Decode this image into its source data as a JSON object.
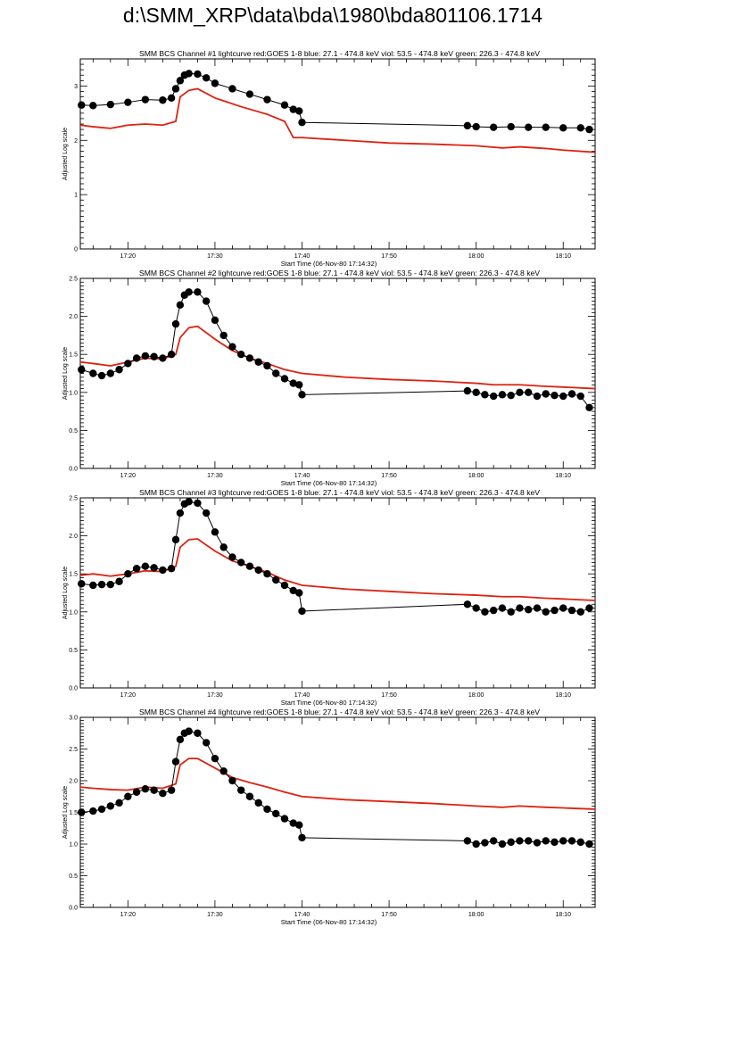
{
  "page_title": "d:\\SMM_XRP\\data\\bda\\1980\\bda801106.1714",
  "colors": {
    "goes": "#dd2211",
    "bcs": "#000000",
    "axes": "#000000"
  },
  "chart_data": [
    {
      "type": "line",
      "title": "SMM BCS Channel #1 lightcurve  red:GOES 1-8  blue: 27.1 - 474.8 keV  viol: 53.5 - 474.8 keV  green: 226.3 - 474.8 keV",
      "xlabel": "Start Time (06-Nov-80 17:14:32)",
      "ylabel": "Adjusted Log scale",
      "xlim": [
        "17:14:32",
        "18:13:40"
      ],
      "ylim": [
        0,
        3.5
      ],
      "x_ticks": [
        "17:20",
        "17:30",
        "17:40",
        "17:50",
        "18:00",
        "18:10"
      ],
      "y_ticks": [
        "0",
        "1",
        "2",
        "3"
      ],
      "series": [
        {
          "style": "goes",
          "x": [
            "17:14:32",
            "17:16:00",
            "17:18:00",
            "17:20:00",
            "17:22:00",
            "17:24:00",
            "17:25:30",
            "17:26:00",
            "17:27:00",
            "17:28:00",
            "17:30:00",
            "17:33:00",
            "17:36:00",
            "17:38:00",
            "17:39:00",
            "17:40:00",
            "17:45:00",
            "17:50:00",
            "17:55:00",
            "18:00:00",
            "18:03:00",
            "18:05:00",
            "18:08:00",
            "18:10:00",
            "18:13:40"
          ],
          "y": [
            2.28,
            2.25,
            2.22,
            2.28,
            2.3,
            2.28,
            2.35,
            2.8,
            2.92,
            2.95,
            2.78,
            2.62,
            2.48,
            2.35,
            2.05,
            2.05,
            2.0,
            1.95,
            1.93,
            1.9,
            1.86,
            1.88,
            1.85,
            1.82,
            1.78
          ]
        },
        {
          "style": "bcs",
          "x": [
            "17:14:40",
            "17:16:00",
            "17:18:00",
            "17:20:00",
            "17:22:00",
            "17:24:00",
            "17:25:00",
            "17:25:30",
            "17:26:00",
            "17:26:30",
            "17:27:00",
            "17:28:00",
            "17:29:00",
            "17:30:00",
            "17:32:00",
            "17:34:00",
            "17:36:00",
            "17:38:00",
            "17:39:00",
            "17:39:40",
            "17:40:00",
            "17:59:00",
            "18:00:00",
            "18:02:00",
            "18:04:00",
            "18:06:00",
            "18:08:00",
            "18:10:00",
            "18:12:00",
            "18:13:00"
          ],
          "y": [
            2.65,
            2.64,
            2.66,
            2.7,
            2.75,
            2.74,
            2.78,
            2.95,
            3.1,
            3.2,
            3.23,
            3.22,
            3.15,
            3.05,
            2.95,
            2.85,
            2.75,
            2.65,
            2.57,
            2.54,
            2.33,
            2.27,
            2.25,
            2.24,
            2.25,
            2.24,
            2.24,
            2.23,
            2.23,
            2.2
          ]
        }
      ],
      "gap": [
        "17:40:00",
        "17:59:00"
      ]
    },
    {
      "type": "line",
      "title": "SMM BCS Channel #2 lightcurve  red:GOES 1-8  blue: 27.1 - 474.8 keV  viol: 53.5 - 474.8 keV  green: 226.3 - 474.8 keV",
      "xlabel": "Start Time (06-Nov-80 17:14:32)",
      "ylabel": "Adjusted Log scale",
      "xlim": [
        "17:14:32",
        "18:13:40"
      ],
      "ylim": [
        0,
        2.5
      ],
      "x_ticks": [
        "17:20",
        "17:30",
        "17:40",
        "17:50",
        "18:00",
        "18:10"
      ],
      "y_ticks": [
        "0.0",
        "0.5",
        "1.0",
        "1.5",
        "2.0",
        "2.5"
      ],
      "series": [
        {
          "style": "goes",
          "x": [
            "17:14:32",
            "17:16:00",
            "17:18:00",
            "17:20:00",
            "17:22:00",
            "17:24:00",
            "17:25:30",
            "17:26:00",
            "17:27:00",
            "17:28:00",
            "17:30:00",
            "17:32:00",
            "17:34:00",
            "17:36:00",
            "17:38:00",
            "17:40:00",
            "17:45:00",
            "17:50:00",
            "17:55:00",
            "18:00:00",
            "18:02:00",
            "18:05:00",
            "18:08:00",
            "18:10:00",
            "18:13:40"
          ],
          "y": [
            1.4,
            1.38,
            1.35,
            1.4,
            1.45,
            1.44,
            1.5,
            1.72,
            1.85,
            1.87,
            1.7,
            1.55,
            1.45,
            1.38,
            1.3,
            1.25,
            1.2,
            1.17,
            1.15,
            1.12,
            1.1,
            1.1,
            1.08,
            1.07,
            1.05
          ]
        },
        {
          "style": "bcs",
          "x": [
            "17:14:40",
            "17:16:00",
            "17:17:00",
            "17:18:00",
            "17:19:00",
            "17:20:00",
            "17:21:00",
            "17:22:00",
            "17:23:00",
            "17:24:00",
            "17:25:00",
            "17:25:30",
            "17:26:00",
            "17:26:30",
            "17:27:00",
            "17:28:00",
            "17:29:00",
            "17:30:00",
            "17:31:00",
            "17:32:00",
            "17:33:00",
            "17:34:00",
            "17:35:00",
            "17:36:00",
            "17:37:00",
            "17:38:00",
            "17:39:00",
            "17:39:40",
            "17:40:00",
            "17:59:00",
            "18:00:00",
            "18:01:00",
            "18:02:00",
            "18:03:00",
            "18:04:00",
            "18:05:00",
            "18:06:00",
            "18:07:00",
            "18:08:00",
            "18:09:00",
            "18:10:00",
            "18:11:00",
            "18:12:00",
            "18:13:00"
          ],
          "y": [
            1.3,
            1.25,
            1.22,
            1.25,
            1.3,
            1.38,
            1.45,
            1.48,
            1.47,
            1.45,
            1.5,
            1.9,
            2.15,
            2.28,
            2.32,
            2.32,
            2.2,
            1.95,
            1.75,
            1.6,
            1.5,
            1.45,
            1.4,
            1.35,
            1.25,
            1.18,
            1.12,
            1.1,
            0.97,
            1.02,
            1.0,
            0.97,
            0.95,
            0.97,
            0.96,
            1.0,
            1.0,
            0.95,
            0.98,
            0.96,
            0.95,
            0.98,
            0.95,
            0.8
          ]
        }
      ],
      "gap": [
        "17:40:00",
        "17:59:00"
      ]
    },
    {
      "type": "line",
      "title": "SMM BCS Channel #3 lightcurve  red:GOES 1-8  blue: 27.1 - 474.8 keV  viol: 53.5 - 474.8 keV  green: 226.3 - 474.8 keV",
      "xlabel": "Start Time (06-Nov-80 17:14:32)",
      "ylabel": "Adjusted Log scale",
      "xlim": [
        "17:14:32",
        "18:13:40"
      ],
      "ylim": [
        0,
        2.5
      ],
      "x_ticks": [
        "17:20",
        "17:30",
        "17:40",
        "17:50",
        "18:00",
        "18:10"
      ],
      "y_ticks": [
        "0.0",
        "0.5",
        "1.0",
        "1.5",
        "2.0",
        "2.5"
      ],
      "series": [
        {
          "style": "goes",
          "x": [
            "17:14:32",
            "17:16:00",
            "17:18:00",
            "17:20:00",
            "17:22:00",
            "17:24:00",
            "17:25:30",
            "17:26:00",
            "17:27:00",
            "17:28:00",
            "17:30:00",
            "17:32:00",
            "17:34:00",
            "17:36:00",
            "17:38:00",
            "17:40:00",
            "17:45:00",
            "17:50:00",
            "17:55:00",
            "18:00:00",
            "18:03:00",
            "18:05:00",
            "18:08:00",
            "18:10:00",
            "18:13:40"
          ],
          "y": [
            1.48,
            1.5,
            1.47,
            1.5,
            1.54,
            1.53,
            1.6,
            1.85,
            1.95,
            1.96,
            1.8,
            1.67,
            1.6,
            1.52,
            1.42,
            1.35,
            1.3,
            1.27,
            1.24,
            1.22,
            1.2,
            1.2,
            1.18,
            1.17,
            1.15
          ]
        },
        {
          "style": "bcs",
          "x": [
            "17:14:40",
            "17:16:00",
            "17:17:00",
            "17:18:00",
            "17:19:00",
            "17:20:00",
            "17:21:00",
            "17:22:00",
            "17:23:00",
            "17:24:00",
            "17:25:00",
            "17:25:30",
            "17:26:00",
            "17:26:30",
            "17:27:00",
            "17:28:00",
            "17:29:00",
            "17:30:00",
            "17:31:00",
            "17:32:00",
            "17:33:00",
            "17:34:00",
            "17:35:00",
            "17:36:00",
            "17:37:00",
            "17:38:00",
            "17:39:00",
            "17:39:40",
            "17:40:00",
            "17:59:00",
            "18:00:00",
            "18:01:00",
            "18:02:00",
            "18:03:00",
            "18:04:00",
            "18:05:00",
            "18:06:00",
            "18:07:00",
            "18:08:00",
            "18:09:00",
            "18:10:00",
            "18:11:00",
            "18:12:00",
            "18:13:00"
          ],
          "y": [
            1.37,
            1.35,
            1.36,
            1.36,
            1.4,
            1.5,
            1.57,
            1.6,
            1.58,
            1.55,
            1.57,
            1.95,
            2.3,
            2.42,
            2.45,
            2.43,
            2.3,
            2.05,
            1.85,
            1.72,
            1.65,
            1.6,
            1.55,
            1.5,
            1.42,
            1.35,
            1.28,
            1.25,
            1.01,
            1.1,
            1.05,
            1.0,
            1.02,
            1.05,
            1.0,
            1.05,
            1.03,
            1.05,
            1.0,
            1.02,
            1.05,
            1.02,
            1.0,
            1.05
          ]
        }
      ],
      "gap": [
        "17:40:00",
        "17:59:00"
      ]
    },
    {
      "type": "line",
      "title": "SMM BCS Channel #4 lightcurve  red:GOES 1-8  blue: 27.1 - 474.8 keV  viol: 53.5 - 474.8 keV  green: 226.3 - 474.8 keV",
      "xlabel": "Start Time (06-Nov-80 17:14:32)",
      "ylabel": "Adjusted Log scale",
      "xlim": [
        "17:14:32",
        "18:13:40"
      ],
      "ylim": [
        0,
        3.0
      ],
      "x_ticks": [
        "17:20",
        "17:30",
        "17:40",
        "17:50",
        "18:00",
        "18:10"
      ],
      "y_ticks": [
        "0.0",
        "0.5",
        "1.0",
        "1.5",
        "2.0",
        "2.5",
        "3.0"
      ],
      "series": [
        {
          "style": "goes",
          "x": [
            "17:14:32",
            "17:16:00",
            "17:18:00",
            "17:20:00",
            "17:22:00",
            "17:24:00",
            "17:25:30",
            "17:26:00",
            "17:27:00",
            "17:28:00",
            "17:30:00",
            "17:32:00",
            "17:34:00",
            "17:36:00",
            "17:38:00",
            "17:40:00",
            "17:45:00",
            "17:50:00",
            "17:55:00",
            "18:00:00",
            "18:03:00",
            "18:05:00",
            "18:08:00",
            "18:10:00",
            "18:13:40"
          ],
          "y": [
            1.9,
            1.88,
            1.86,
            1.85,
            1.9,
            1.88,
            1.95,
            2.25,
            2.35,
            2.35,
            2.2,
            2.05,
            1.97,
            1.9,
            1.82,
            1.75,
            1.7,
            1.67,
            1.64,
            1.6,
            1.58,
            1.6,
            1.58,
            1.57,
            1.55
          ]
        },
        {
          "style": "bcs",
          "x": [
            "17:14:40",
            "17:16:00",
            "17:17:00",
            "17:18:00",
            "17:19:00",
            "17:20:00",
            "17:21:00",
            "17:22:00",
            "17:23:00",
            "17:24:00",
            "17:25:00",
            "17:25:30",
            "17:26:00",
            "17:26:30",
            "17:27:00",
            "17:28:00",
            "17:29:00",
            "17:30:00",
            "17:31:00",
            "17:32:00",
            "17:33:00",
            "17:34:00",
            "17:35:00",
            "17:36:00",
            "17:37:00",
            "17:38:00",
            "17:39:00",
            "17:39:40",
            "17:40:00",
            "17:59:00",
            "18:00:00",
            "18:01:00",
            "18:02:00",
            "18:03:00",
            "18:04:00",
            "18:05:00",
            "18:06:00",
            "18:07:00",
            "18:08:00",
            "18:09:00",
            "18:10:00",
            "18:11:00",
            "18:12:00",
            "18:13:00"
          ],
          "y": [
            1.5,
            1.52,
            1.55,
            1.6,
            1.65,
            1.75,
            1.82,
            1.87,
            1.85,
            1.8,
            1.85,
            2.3,
            2.65,
            2.75,
            2.78,
            2.75,
            2.6,
            2.35,
            2.15,
            2.0,
            1.85,
            1.75,
            1.65,
            1.55,
            1.48,
            1.4,
            1.33,
            1.3,
            1.1,
            1.05,
            1.0,
            1.02,
            1.05,
            1.0,
            1.03,
            1.05,
            1.05,
            1.02,
            1.05,
            1.03,
            1.05,
            1.05,
            1.03,
            1.0
          ]
        }
      ],
      "gap": [
        "17:40:00",
        "17:59:00"
      ]
    }
  ]
}
